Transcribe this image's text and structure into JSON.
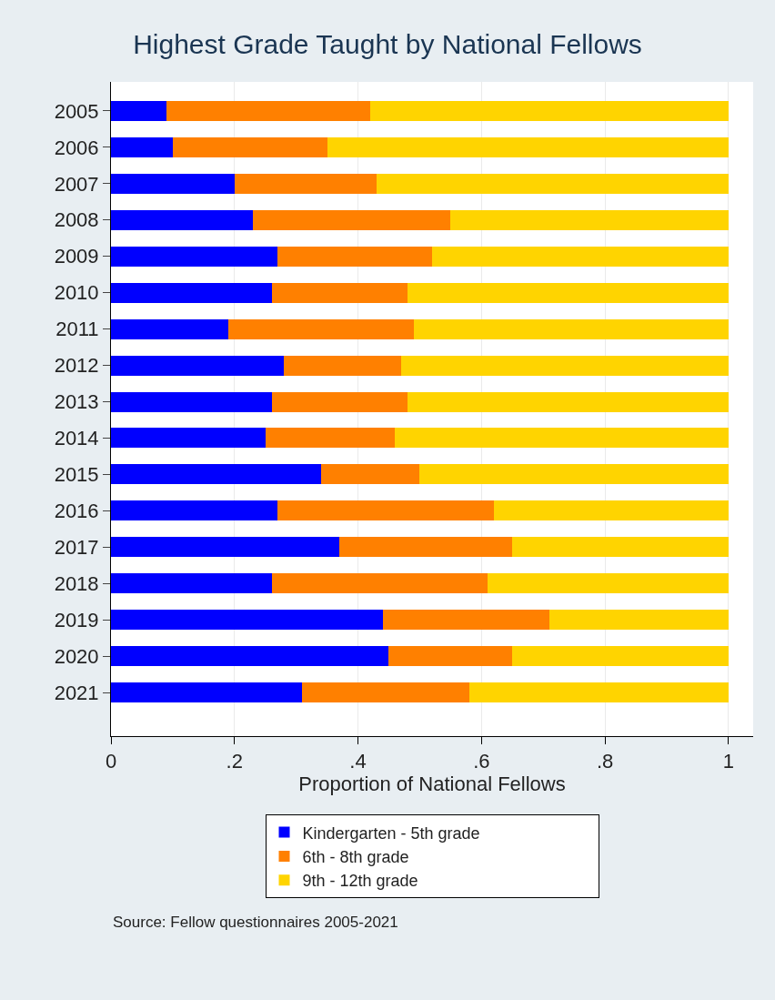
{
  "chart_data": {
    "type": "bar",
    "orientation": "horizontal",
    "stacked": true,
    "title": "Highest Grade Taught by National Fellows",
    "xlabel": "Proportion of National Fellows",
    "categories": [
      "2005",
      "2006",
      "2007",
      "2008",
      "2009",
      "2010",
      "2011",
      "2012",
      "2013",
      "2014",
      "2015",
      "2016",
      "2017",
      "2018",
      "2019",
      "2020",
      "2021"
    ],
    "series": [
      {
        "name": "Kindergarten - 5th grade",
        "color": "#0000ff",
        "values": [
          0.09,
          0.1,
          0.2,
          0.23,
          0.27,
          0.26,
          0.19,
          0.28,
          0.26,
          0.25,
          0.34,
          0.27,
          0.37,
          0.26,
          0.44,
          0.45,
          0.31
        ]
      },
      {
        "name": "6th - 8th grade",
        "color": "#ff8000",
        "values": [
          0.33,
          0.25,
          0.23,
          0.32,
          0.25,
          0.22,
          0.3,
          0.19,
          0.22,
          0.21,
          0.16,
          0.35,
          0.28,
          0.35,
          0.27,
          0.2,
          0.27
        ]
      },
      {
        "name": "9th - 12th grade",
        "color": "#ffd400",
        "values": [
          0.58,
          0.65,
          0.57,
          0.45,
          0.48,
          0.52,
          0.51,
          0.53,
          0.52,
          0.54,
          0.5,
          0.38,
          0.35,
          0.39,
          0.29,
          0.35,
          0.42
        ]
      }
    ],
    "xlim": [
      0,
      1.04
    ],
    "xticks": [
      0,
      {
        "value": 0.2,
        "label": ".2"
      },
      {
        "value": 0.4,
        "label": ".4"
      },
      {
        "value": 0.6,
        "label": ".6"
      },
      {
        "value": 0.8,
        "label": ".8"
      },
      1
    ],
    "grid": "x",
    "legend": "bottom",
    "annotations": [
      "Source: Fellow questionnaires 2005-2021"
    ]
  }
}
